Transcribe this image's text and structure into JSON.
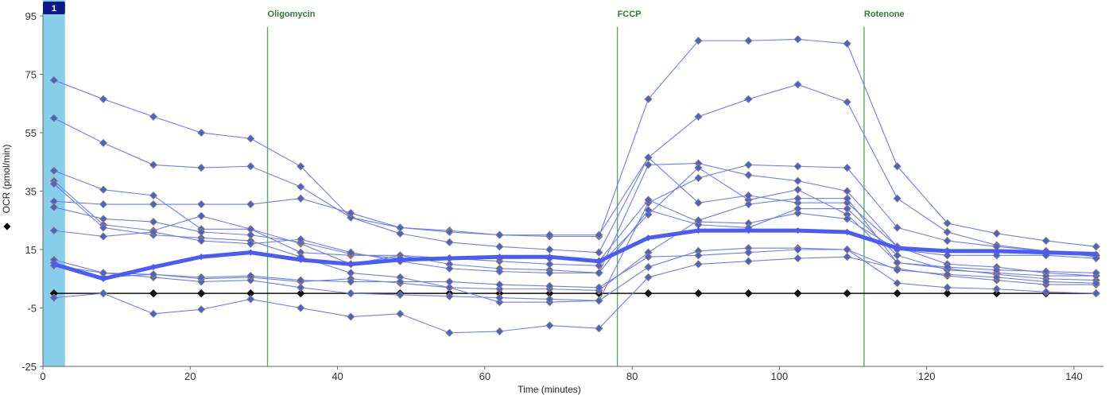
{
  "chart_data": {
    "type": "line",
    "xlabel": "Time (minutes)",
    "ylabel": "OCR (pmol/min)",
    "ylabel_marker": "◆",
    "xlim": [
      0,
      144
    ],
    "ylim": [
      -25,
      95
    ],
    "xticks": [
      0,
      20,
      40,
      60,
      80,
      100,
      120,
      140
    ],
    "yticks": [
      -25,
      -5,
      15,
      35,
      55,
      75,
      95
    ],
    "grid": false,
    "legend": "none",
    "rate_badge": "1",
    "highlight_x": [
      0,
      3
    ],
    "injections": [
      {
        "label": "Oligomycin",
        "x": 30.5
      },
      {
        "label": "FCCP",
        "x": 78.0
      },
      {
        "label": "Rotenone",
        "x": 111.5
      }
    ],
    "colors": {
      "series_line": "#6b7ff2",
      "series_marker": "#3b66e0",
      "marker_edge": "#c08040",
      "mean_line": "#4a5cf5",
      "baseline": "#111111",
      "injection_line": "#5fa85f",
      "highlight": "#87ceeb",
      "badge": "#0a1a8a"
    },
    "x": [
      1.5,
      8.2,
      15.0,
      21.5,
      28.2,
      35.0,
      41.8,
      48.5,
      55.2,
      62.0,
      68.8,
      75.5,
      82.2,
      89.0,
      95.8,
      102.5,
      109.2,
      116.0,
      122.8,
      129.5,
      136.2,
      143.0
    ],
    "series": [
      {
        "values": [
          73,
          66.5,
          60.5,
          55,
          53,
          43.5,
          26,
          22.5,
          21.5,
          20,
          19.5,
          19.5,
          66.5,
          86.5,
          86.5,
          87,
          85.5,
          43.5,
          24,
          20.5,
          18,
          16
        ]
      },
      {
        "values": [
          60,
          51.5,
          44,
          43,
          43.5,
          36.5,
          26,
          20.5,
          17.5,
          16,
          15,
          14,
          46.5,
          60.5,
          66.5,
          71.5,
          65.5,
          32.5,
          21,
          16.5,
          14.5,
          13
        ]
      },
      {
        "values": [
          42,
          35.5,
          33.5,
          22,
          22,
          17,
          10,
          13,
          10,
          8.5,
          8,
          7,
          44,
          44.5,
          40.5,
          38.5,
          35,
          16,
          10,
          9,
          7,
          6
        ]
      },
      {
        "values": [
          38.5,
          23.5,
          21.5,
          26.5,
          22,
          14,
          13,
          13,
          12,
          11,
          10,
          9.5,
          27,
          43,
          32,
          35.5,
          27,
          10.5,
          8.5,
          6.5,
          5,
          4.5
        ]
      },
      {
        "values": [
          37.5,
          22.5,
          20,
          19,
          18,
          12.5,
          7,
          5.5,
          2,
          -3,
          -3,
          -2.5,
          31,
          39.5,
          44,
          43.5,
          43,
          22.5,
          18,
          16,
          14.5,
          12.5
        ]
      },
      {
        "values": [
          31.5,
          30.5,
          30.5,
          30.5,
          30.5,
          32.5,
          27.5,
          22.5,
          21,
          20,
          20,
          20,
          46.5,
          31,
          33.5,
          31,
          31,
          16,
          14.5,
          14,
          13.5,
          13
        ]
      },
      {
        "values": [
          29.5,
          25.5,
          24.5,
          21,
          20,
          17.5,
          13.5,
          12,
          12,
          12,
          12,
          11,
          32,
          24.5,
          24,
          27.5,
          25.5,
          15,
          13,
          13,
          13,
          12
        ]
      },
      {
        "values": [
          21.5,
          19.5,
          21,
          18,
          17,
          18.5,
          14,
          11,
          8.5,
          7.5,
          7,
          7,
          28.5,
          23.5,
          22.5,
          29,
          29,
          13,
          8,
          7,
          6,
          6
        ]
      },
      {
        "values": [
          10.5,
          5.5,
          6.5,
          5,
          5.5,
          4,
          5,
          3.5,
          2,
          1.5,
          1.5,
          1,
          14,
          25,
          30.5,
          32.5,
          32.5,
          10.5,
          9,
          8,
          7.5,
          7
        ]
      },
      {
        "values": [
          9.5,
          7,
          5.5,
          4,
          4.5,
          2,
          0,
          -0.5,
          -1,
          -1.5,
          -2,
          -2.5,
          9,
          14.5,
          15.5,
          15.5,
          15,
          3.5,
          2,
          1.5,
          0.5,
          0
        ]
      },
      {
        "values": [
          -1.5,
          0,
          -7,
          -5.5,
          -2,
          -5,
          -8,
          -7,
          -13.5,
          -13,
          -11,
          -12,
          5.5,
          10,
          11,
          12,
          12.5,
          8.5,
          6,
          4.5,
          3,
          3
        ]
      },
      {
        "values": [
          11.5,
          7,
          6.5,
          5.5,
          6,
          4.5,
          4,
          4,
          4,
          3,
          2.5,
          2,
          12.5,
          13,
          14,
          15,
          15,
          8,
          6.5,
          5.5,
          4,
          3.5
        ]
      },
      {
        "values": [
          0,
          0,
          0,
          0,
          0,
          0,
          0,
          0,
          0,
          0,
          0,
          0,
          0,
          0,
          0,
          0,
          0,
          0,
          0,
          0,
          0,
          0
        ],
        "role": "baseline"
      }
    ],
    "mean_values": [
      10,
      5,
      9,
      12.5,
      14,
      11.5,
      10,
      11.5,
      12,
      12.5,
      12.5,
      11,
      19,
      21.5,
      21.5,
      21.5,
      21,
      15.5,
      14.5,
      14.5,
      14,
      13.5
    ]
  }
}
